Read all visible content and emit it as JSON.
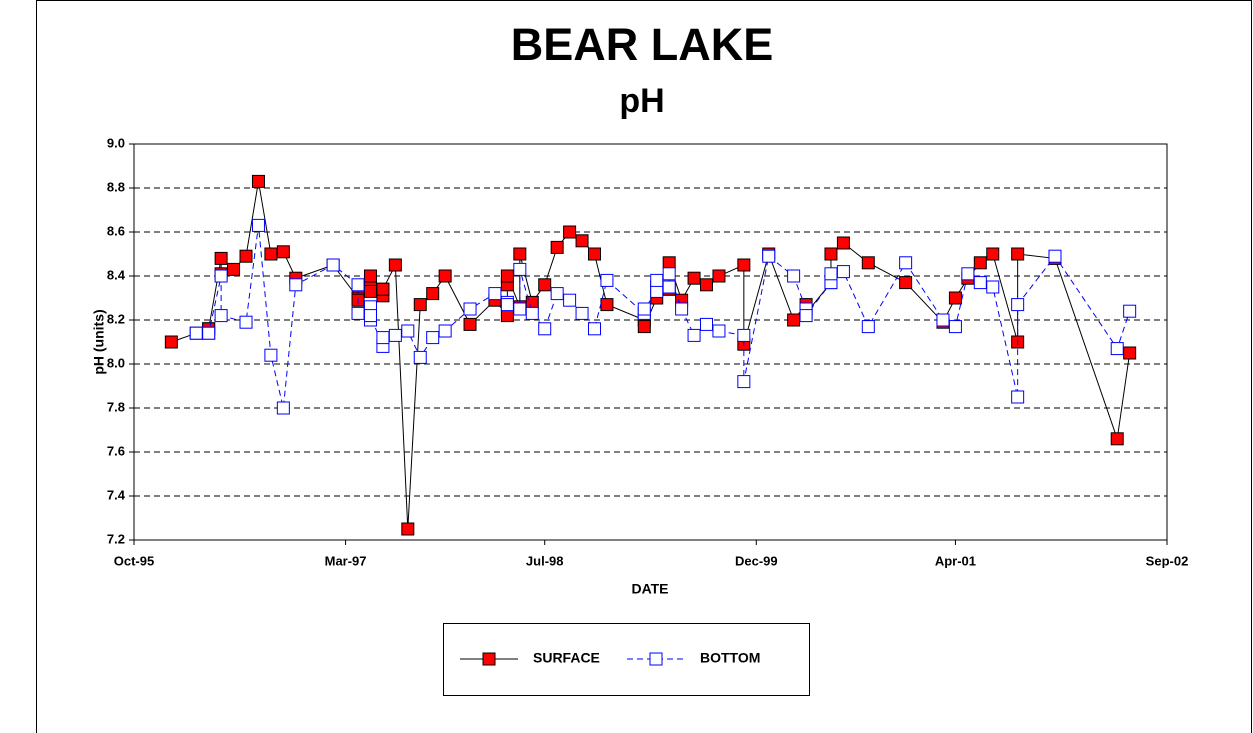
{
  "chart_data": {
    "type": "line",
    "title": "BEAR LAKE",
    "subtitle": "pH",
    "x_label": "DATE",
    "y_label": "pH (units)",
    "xlim": [
      "1995-10",
      "2002-09"
    ],
    "xticks": [
      {
        "value": "1995-10",
        "label": "Oct-95"
      },
      {
        "value": "1997-03",
        "label": "Mar-97"
      },
      {
        "value": "1998-07",
        "label": "Jul-98"
      },
      {
        "value": "1999-12",
        "label": "Dec-99"
      },
      {
        "value": "2001-04",
        "label": "Apr-01"
      },
      {
        "value": "2002-09",
        "label": "Sep-02"
      }
    ],
    "ylim": [
      7.2,
      9.0
    ],
    "yticks": [
      {
        "value": 7.2,
        "label": "7.2"
      },
      7.4,
      7.6,
      7.8,
      {
        "value": 8.0,
        "label": "8.0"
      },
      8.2,
      8.4,
      8.6,
      8.8,
      {
        "value": 9.0,
        "label": "9.0"
      }
    ],
    "grid": true,
    "legend": "bottom",
    "series": [
      {
        "name": "SURFACE",
        "color": "#ff0000",
        "line_color": "#000000",
        "dashed": false,
        "x": [
          "1996-01",
          "1996-03",
          "1996-04",
          "1996-04",
          "1996-05",
          "1996-05",
          "1996-06",
          "1996-07",
          "1996-08",
          "1996-09",
          "1996-10",
          "1996-11",
          "1997-02",
          "1997-04",
          "1997-04",
          "1997-05",
          "1997-05",
          "1997-05",
          "1997-06",
          "1997-06",
          "1997-06",
          "1997-07",
          "1997-08",
          "1997-09",
          "1997-10",
          "1997-11",
          "1998-01",
          "1998-03",
          "1998-04",
          "1998-04",
          "1998-04",
          "1998-05",
          "1998-05",
          "1998-06",
          "1998-07",
          "1998-08",
          "1998-09",
          "1998-10",
          "1998-11",
          "1998-12",
          "1999-03",
          "1999-03",
          "1999-04",
          "1999-04",
          "1999-05",
          "1999-05",
          "1999-05",
          "1999-06",
          "1999-07",
          "1999-08",
          "1999-09",
          "1999-11",
          "1999-11",
          "2000-01",
          "2000-03",
          "2000-04",
          "2000-04",
          "2000-06",
          "2000-06",
          "2000-07",
          "2000-09",
          "2000-12",
          "2001-03",
          "2001-04",
          "2001-05",
          "2001-06",
          "2001-07",
          "2001-09",
          "2001-09",
          "2001-12",
          "2002-05",
          "2002-06"
        ],
        "values": [
          8.1,
          8.14,
          8.16,
          8.16,
          8.48,
          8.41,
          8.43,
          8.49,
          8.83,
          8.5,
          8.51,
          8.39,
          8.45,
          8.3,
          8.29,
          8.37,
          8.33,
          8.4,
          8.31,
          8.34,
          8.34,
          8.45,
          7.25,
          8.27,
          8.32,
          8.4,
          8.18,
          8.29,
          8.22,
          8.36,
          8.4,
          8.26,
          8.5,
          8.28,
          8.36,
          8.53,
          8.6,
          8.56,
          8.5,
          8.27,
          8.2,
          8.17,
          8.3,
          8.35,
          8.34,
          8.34,
          8.46,
          8.29,
          8.39,
          8.36,
          8.4,
          8.45,
          8.09,
          8.5,
          8.2,
          8.27,
          8.23,
          8.37,
          8.5,
          8.55,
          8.46,
          8.37,
          8.19,
          8.3,
          8.39,
          8.46,
          8.5,
          8.1,
          8.5,
          8.48,
          7.66,
          8.05
        ]
      },
      {
        "name": "BOTTOM",
        "color": "#ffffff",
        "line_color": "#0000ff",
        "dashed": true,
        "x": [
          "1996-03",
          "1996-04",
          "1996-04",
          "1996-05",
          "1996-05",
          "1996-07",
          "1996-08",
          "1996-09",
          "1996-10",
          "1996-11",
          "1997-02",
          "1997-04",
          "1997-04",
          "1997-05",
          "1997-05",
          "1997-05",
          "1997-06",
          "1997-06",
          "1997-07",
          "1997-08",
          "1997-09",
          "1997-10",
          "1997-11",
          "1998-01",
          "1998-03",
          "1998-04",
          "1998-04",
          "1998-05",
          "1998-05",
          "1998-06",
          "1998-07",
          "1998-08",
          "1998-09",
          "1998-10",
          "1998-11",
          "1998-12",
          "1999-03",
          "1999-03",
          "1999-04",
          "1999-04",
          "1999-05",
          "1999-05",
          "1999-06",
          "1999-07",
          "1999-08",
          "1999-09",
          "1999-11",
          "1999-11",
          "2000-01",
          "2000-03",
          "2000-04",
          "2000-04",
          "2000-06",
          "2000-06",
          "2000-07",
          "2000-09",
          "2000-12",
          "2001-03",
          "2001-04",
          "2001-05",
          "2001-06",
          "2001-07",
          "2001-09",
          "2001-09",
          "2001-12",
          "2002-05",
          "2002-06"
        ],
        "values": [
          8.14,
          8.14,
          8.14,
          8.4,
          8.22,
          8.19,
          8.63,
          8.04,
          7.8,
          8.36,
          8.45,
          8.36,
          8.23,
          8.26,
          8.2,
          8.22,
          8.08,
          8.12,
          8.13,
          8.15,
          8.03,
          8.12,
          8.15,
          8.25,
          8.32,
          8.28,
          8.27,
          8.25,
          8.43,
          8.23,
          8.16,
          8.32,
          8.29,
          8.23,
          8.16,
          8.38,
          8.23,
          8.25,
          8.33,
          8.38,
          8.35,
          8.41,
          8.25,
          8.13,
          8.18,
          8.15,
          8.13,
          7.92,
          8.49,
          8.4,
          8.25,
          8.22,
          8.37,
          8.41,
          8.42,
          8.17,
          8.46,
          8.2,
          8.17,
          8.41,
          8.37,
          8.35,
          7.85,
          8.27,
          8.49,
          8.07,
          8.24
        ]
      }
    ]
  }
}
